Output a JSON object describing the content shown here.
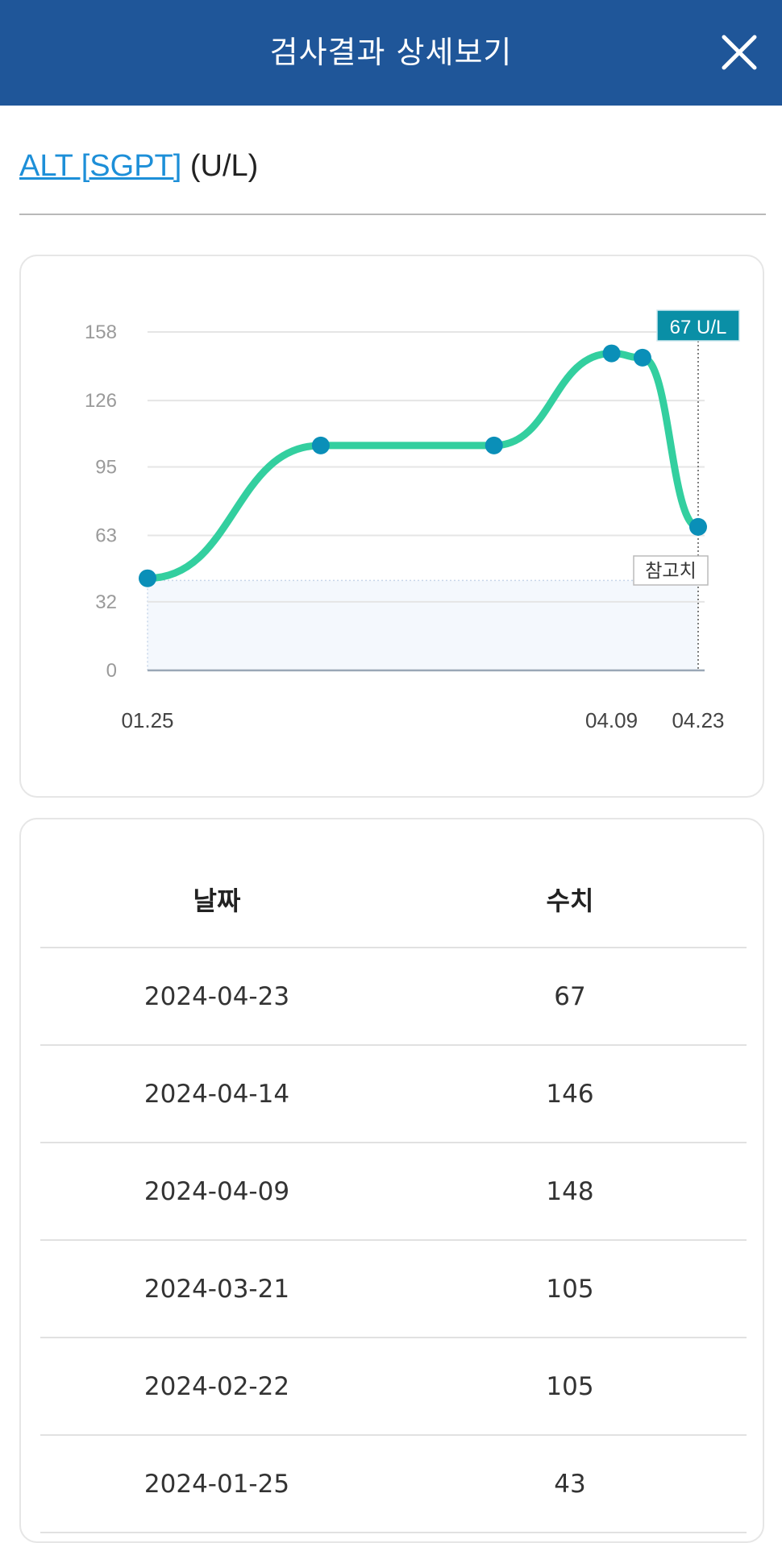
{
  "header": {
    "title": "검사결과 상세보기",
    "close_icon": "close-icon"
  },
  "test": {
    "name": "ALT [SGPT]",
    "unit": "(U/L)"
  },
  "chart_data": {
    "type": "line",
    "x": [
      "2024-01-25",
      "2024-02-22",
      "2024-03-21",
      "2024-04-09",
      "2024-04-14",
      "2024-04-23"
    ],
    "values": [
      43,
      105,
      105,
      148,
      146,
      67
    ],
    "x_tick_labels": [
      "01.25",
      "04.09",
      "04.23"
    ],
    "x_tick_at": [
      "2024-01-25",
      "2024-04-09",
      "2024-04-23"
    ],
    "y_ticks": [
      "158",
      "126",
      "95",
      "63",
      "32",
      "0"
    ],
    "ylim": [
      0,
      158
    ],
    "reference_range": [
      0,
      42
    ],
    "reference_label": "참고치",
    "highlight_label": "67 U/L",
    "grid": true,
    "colors": {
      "line": "#33cf9f",
      "point": "#0a8fb8",
      "highlight_bg": "#0a8fa6",
      "reference_fill": "#f4f8fd"
    }
  },
  "table": {
    "headers": [
      "날짜",
      "수치"
    ],
    "rows": [
      [
        "2024-04-23",
        "67"
      ],
      [
        "2024-04-14",
        "146"
      ],
      [
        "2024-04-09",
        "148"
      ],
      [
        "2024-03-21",
        "105"
      ],
      [
        "2024-02-22",
        "105"
      ],
      [
        "2024-01-25",
        "43"
      ]
    ]
  }
}
